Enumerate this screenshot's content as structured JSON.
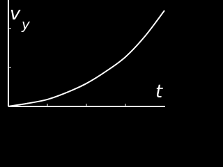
{
  "chart_data": {
    "type": "line",
    "ylabel": "v",
    "ylabel_subscript": "y",
    "xlabel": "t",
    "x": [
      0,
      0.5,
      1,
      1.5,
      2,
      2.5,
      3,
      3.5,
      4
    ],
    "series": [
      {
        "color": "#ffffff",
        "values": [
          0,
          0.08,
          0.18,
          0.36,
          0.59,
          0.9,
          1.27,
          1.8,
          2.46
        ]
      }
    ],
    "xlim": [
      0,
      4
    ],
    "xticks": [
      1,
      2,
      3
    ],
    "ylim": [
      0,
      2.73
    ],
    "yticks": [
      1,
      2
    ],
    "axis_color": "#ffffff",
    "background": "#000000"
  }
}
